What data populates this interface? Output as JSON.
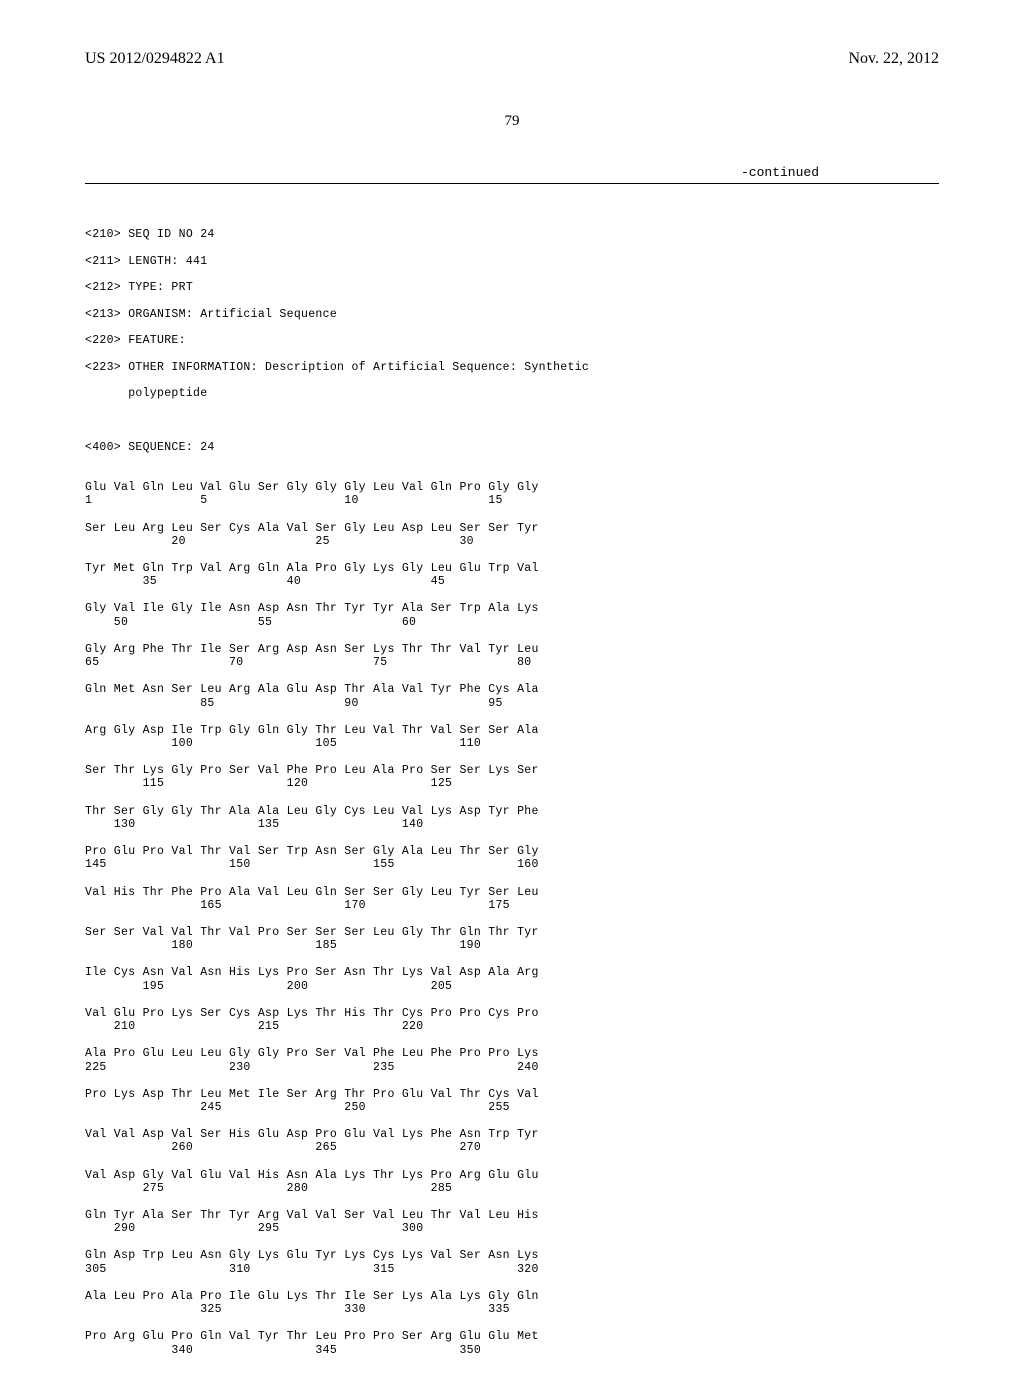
{
  "header": {
    "pub_number": "US 2012/0294822 A1",
    "pub_date": "Nov. 22, 2012"
  },
  "page_number": "79",
  "continued_label": "-continued",
  "seq_meta": {
    "seq_id": "<210> SEQ ID NO 24",
    "length": "<211> LENGTH: 441",
    "type": "<212> TYPE: PRT",
    "organism": "<213> ORGANISM: Artificial Sequence",
    "feature": "<220> FEATURE:",
    "other_info": "<223> OTHER INFORMATION: Description of Artificial Sequence: Synthetic",
    "other_info_cont": "      polypeptide",
    "sequence_header": "<400> SEQUENCE: 24"
  },
  "sequence_rows": [
    {
      "aa": "Glu Val Gln Leu Val Glu Ser Gly Gly Gly Leu Val Gln Pro Gly Gly",
      "nums": "1               5                   10                  15"
    },
    {
      "aa": "Ser Leu Arg Leu Ser Cys Ala Val Ser Gly Leu Asp Leu Ser Ser Tyr",
      "nums": "            20                  25                  30"
    },
    {
      "aa": "Tyr Met Gln Trp Val Arg Gln Ala Pro Gly Lys Gly Leu Glu Trp Val",
      "nums": "        35                  40                  45"
    },
    {
      "aa": "Gly Val Ile Gly Ile Asn Asp Asn Thr Tyr Tyr Ala Ser Trp Ala Lys",
      "nums": "    50                  55                  60"
    },
    {
      "aa": "Gly Arg Phe Thr Ile Ser Arg Asp Asn Ser Lys Thr Thr Val Tyr Leu",
      "nums": "65                  70                  75                  80"
    },
    {
      "aa": "Gln Met Asn Ser Leu Arg Ala Glu Asp Thr Ala Val Tyr Phe Cys Ala",
      "nums": "                85                  90                  95"
    },
    {
      "aa": "Arg Gly Asp Ile Trp Gly Gln Gly Thr Leu Val Thr Val Ser Ser Ala",
      "nums": "            100                 105                 110"
    },
    {
      "aa": "Ser Thr Lys Gly Pro Ser Val Phe Pro Leu Ala Pro Ser Ser Lys Ser",
      "nums": "        115                 120                 125"
    },
    {
      "aa": "Thr Ser Gly Gly Thr Ala Ala Leu Gly Cys Leu Val Lys Asp Tyr Phe",
      "nums": "    130                 135                 140"
    },
    {
      "aa": "Pro Glu Pro Val Thr Val Ser Trp Asn Ser Gly Ala Leu Thr Ser Gly",
      "nums": "145                 150                 155                 160"
    },
    {
      "aa": "Val His Thr Phe Pro Ala Val Leu Gln Ser Ser Gly Leu Tyr Ser Leu",
      "nums": "                165                 170                 175"
    },
    {
      "aa": "Ser Ser Val Val Thr Val Pro Ser Ser Ser Leu Gly Thr Gln Thr Tyr",
      "nums": "            180                 185                 190"
    },
    {
      "aa": "Ile Cys Asn Val Asn His Lys Pro Ser Asn Thr Lys Val Asp Ala Arg",
      "nums": "        195                 200                 205"
    },
    {
      "aa": "Val Glu Pro Lys Ser Cys Asp Lys Thr His Thr Cys Pro Pro Cys Pro",
      "nums": "    210                 215                 220"
    },
    {
      "aa": "Ala Pro Glu Leu Leu Gly Gly Pro Ser Val Phe Leu Phe Pro Pro Lys",
      "nums": "225                 230                 235                 240"
    },
    {
      "aa": "Pro Lys Asp Thr Leu Met Ile Ser Arg Thr Pro Glu Val Thr Cys Val",
      "nums": "                245                 250                 255"
    },
    {
      "aa": "Val Val Asp Val Ser His Glu Asp Pro Glu Val Lys Phe Asn Trp Tyr",
      "nums": "            260                 265                 270"
    },
    {
      "aa": "Val Asp Gly Val Glu Val His Asn Ala Lys Thr Lys Pro Arg Glu Glu",
      "nums": "        275                 280                 285"
    },
    {
      "aa": "Gln Tyr Ala Ser Thr Tyr Arg Val Val Ser Val Leu Thr Val Leu His",
      "nums": "    290                 295                 300"
    },
    {
      "aa": "Gln Asp Trp Leu Asn Gly Lys Glu Tyr Lys Cys Lys Val Ser Asn Lys",
      "nums": "305                 310                 315                 320"
    },
    {
      "aa": "Ala Leu Pro Ala Pro Ile Glu Lys Thr Ile Ser Lys Ala Lys Gly Gln",
      "nums": "                325                 330                 335"
    },
    {
      "aa": "Pro Arg Glu Pro Gln Val Tyr Thr Leu Pro Pro Ser Arg Glu Glu Met",
      "nums": "            340                 345                 350"
    }
  ]
}
